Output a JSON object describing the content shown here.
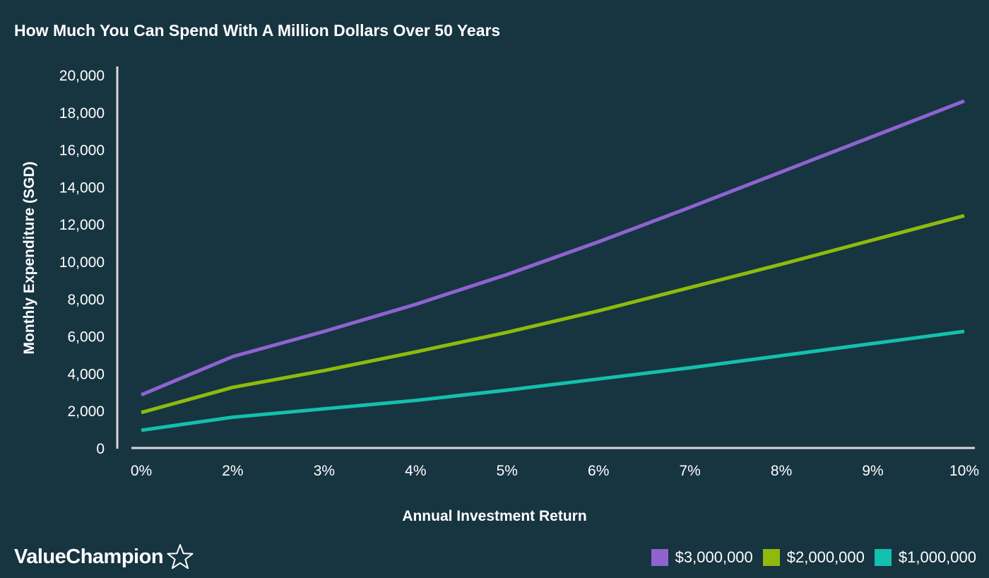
{
  "title": "How Much You Can Spend With A Million Dollars Over 50 Years",
  "brand": {
    "name": "ValueChampion",
    "icon": "star-outline-icon"
  },
  "colors": {
    "background": "#173441",
    "axis": "#d9d9d9",
    "text": "#ffffff"
  },
  "chart_data": {
    "type": "line",
    "title": "How Much You Can Spend With A Million Dollars Over 50 Years",
    "xlabel": "Annual Investment Return",
    "ylabel": "Monthly Expenditure (SGD)",
    "categories": [
      "0%",
      "2%",
      "3%",
      "4%",
      "5%",
      "6%",
      "7%",
      "8%",
      "9%",
      "10%"
    ],
    "ylim": [
      0,
      20000
    ],
    "yticks": [
      0,
      2000,
      4000,
      6000,
      8000,
      10000,
      12000,
      14000,
      16000,
      18000,
      20000
    ],
    "ytick_labels": [
      "0",
      "2,000",
      "4,000",
      "6,000",
      "8,000",
      "10,000",
      "12,000",
      "14,000",
      "16,000",
      "18,000",
      "20,000"
    ],
    "grid": false,
    "legend_position": "bottom-right",
    "series": [
      {
        "name": "$3,000,000",
        "color": "#8e63cf",
        "values": [
          2850,
          4900,
          6250,
          7700,
          9300,
          11050,
          12900,
          14800,
          16700,
          18600
        ]
      },
      {
        "name": "$2,000,000",
        "color": "#8fba0c",
        "values": [
          1900,
          3250,
          4150,
          5150,
          6200,
          7350,
          8600,
          9850,
          11150,
          12450
        ]
      },
      {
        "name": "$1,000,000",
        "color": "#13c0ad",
        "values": [
          950,
          1650,
          2100,
          2550,
          3100,
          3700,
          4300,
          4950,
          5600,
          6250
        ]
      }
    ]
  }
}
